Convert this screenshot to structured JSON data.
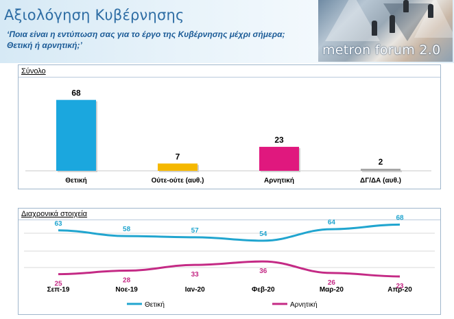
{
  "header": {
    "title": "Αξιολόγηση Κυβέρνησης",
    "subtitle": "‘Ποια είναι η εντύπωση σας για το έργο της Κυβέρνησης μέχρι σήμερα; Θετική ή αρνητική;’",
    "logo_text": "metron forum 2.0"
  },
  "panels": {
    "total_label": "Σύνολο",
    "trend_label": "Διαχρονικά στοιχεία"
  },
  "colors": {
    "positive": "#1ba7de",
    "neutral": "#f5b800",
    "negative": "#e0187e",
    "dk": "#a6a6a6",
    "trend_positive": "#21a5cf",
    "trend_negative": "#c42a85"
  },
  "chart_data": [
    {
      "type": "bar",
      "title": "Σύνολο",
      "categories": [
        "Θετική",
        "Ούτε-ούτε (αυθ.)",
        "Αρνητική",
        "ΔΓ/ΔΑ (αυθ.)"
      ],
      "values": [
        68,
        7,
        23,
        2
      ],
      "ylim": [
        0,
        75
      ]
    },
    {
      "type": "line",
      "title": "Διαχρονικά στοιχεία",
      "categories": [
        "Σεπ-19",
        "Νοε-19",
        "Ιαν-20",
        "Φεβ-20",
        "Μαρ-20",
        "Απρ-20"
      ],
      "series": [
        {
          "name": "Θετική",
          "values": [
            63,
            58,
            57,
            54,
            64,
            68
          ]
        },
        {
          "name": "Αρνητική",
          "values": [
            25,
            28,
            33,
            36,
            26,
            23
          ]
        }
      ],
      "legend": "bottom"
    }
  ]
}
